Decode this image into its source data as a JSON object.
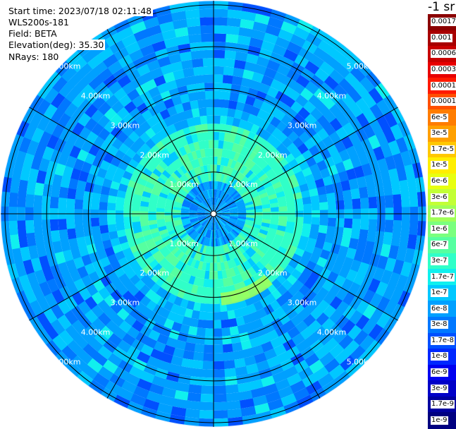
{
  "info": {
    "start_time": "Start time: 2023/07/18 02:11:48",
    "device": "WLS200s-181",
    "field": "Field: BETA",
    "elevation": "Elevation(deg): 35.30",
    "nrays": "NRays: 180"
  },
  "colorbar": {
    "unit": "-1 sr",
    "levels": [
      {
        "label": "0.0017",
        "color": "#8b0000"
      },
      {
        "label": "0.001",
        "color": "#a80000"
      },
      {
        "label": "0.0006",
        "color": "#c80000"
      },
      {
        "label": "0.0003",
        "color": "#e80000"
      },
      {
        "label": "0.00017",
        "color": "#ff1a00"
      },
      {
        "label": "0.0001",
        "color": "#ff5000"
      },
      {
        "label": "6e-5",
        "color": "#ff7d00"
      },
      {
        "label": "3e-5",
        "color": "#ffa000"
      },
      {
        "label": "1.7e-5",
        "color": "#ffc800"
      },
      {
        "label": "1e-5",
        "color": "#ffee00"
      },
      {
        "label": "6e-6",
        "color": "#e8ff10"
      },
      {
        "label": "3e-6",
        "color": "#c2ff36"
      },
      {
        "label": "1.7e-6",
        "color": "#a0ff58"
      },
      {
        "label": "1e-6",
        "color": "#7aff7e"
      },
      {
        "label": "6e-7",
        "color": "#56ffa0"
      },
      {
        "label": "3e-7",
        "color": "#30ffc8"
      },
      {
        "label": "1.7e-7",
        "color": "#10f0ee"
      },
      {
        "label": "1e-7",
        "color": "#00c8ff"
      },
      {
        "label": "6e-8",
        "color": "#00a0ff"
      },
      {
        "label": "3e-8",
        "color": "#0078ff"
      },
      {
        "label": "1.7e-8",
        "color": "#0050ff"
      },
      {
        "label": "1e-8",
        "color": "#0028ff"
      },
      {
        "label": "6e-9",
        "color": "#0000f0"
      },
      {
        "label": "3e-9",
        "color": "#0000c8"
      },
      {
        "label": "1.7e-9",
        "color": "#0000a0"
      },
      {
        "label": "1e-9",
        "color": "#000080"
      }
    ]
  },
  "chart_data": {
    "type": "heatmap",
    "projection": "polar (PPI scan)",
    "field": "BETA",
    "elevation_deg": 35.3,
    "n_rays": 180,
    "range_rings_km": [
      1,
      2,
      3,
      4,
      5
    ],
    "ring_labels": [
      "1.00km",
      "2.00km",
      "3.00km",
      "4.00km",
      "5.00km"
    ],
    "azimuth_lines_deg": [
      0,
      30,
      60,
      90,
      120,
      150,
      180,
      210,
      240,
      270,
      300,
      330
    ],
    "max_range_km": 5.1,
    "scale": "log",
    "value_range": [
      1e-09,
      0.0017
    ],
    "dominant_level": "6e-8",
    "near_ring_level": "3e-7",
    "plume": {
      "azimuth_deg": [
        140,
        175
      ],
      "range_km": [
        1.9,
        2.2
      ],
      "level": "1.7e-6"
    }
  }
}
